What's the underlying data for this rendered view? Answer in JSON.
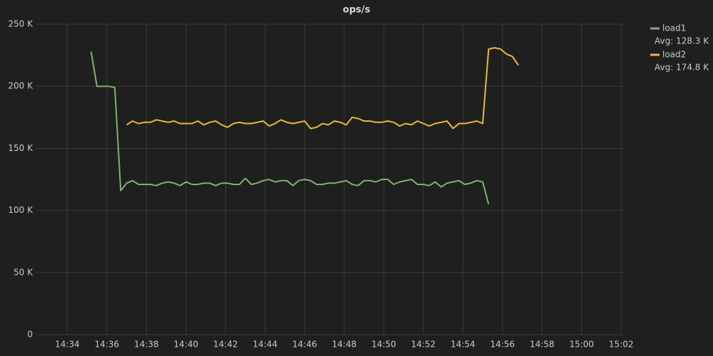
{
  "chart_data": {
    "type": "line",
    "title": "ops/s",
    "x": [
      875.2,
      875.5,
      875.8,
      876.1,
      876.4,
      876.7,
      877.0,
      877.3,
      877.6,
      877.9,
      878.2,
      878.5,
      878.8,
      879.1,
      879.4,
      879.7,
      880.0,
      880.3,
      880.6,
      880.9,
      881.2,
      881.5,
      881.8,
      882.1,
      882.4,
      882.7,
      883.0,
      883.3,
      883.6,
      883.9,
      884.2,
      884.5,
      884.8,
      885.1,
      885.4,
      885.7,
      886.0,
      886.3,
      886.6,
      886.9,
      887.2,
      887.5,
      887.8,
      888.1,
      888.4,
      888.7,
      889.0,
      889.3,
      889.6,
      889.9,
      890.2,
      890.5,
      890.8,
      891.1,
      891.4,
      891.7,
      892.0,
      892.3,
      892.6,
      892.9,
      893.2,
      893.5,
      893.8,
      894.1,
      894.4,
      894.7,
      895.0,
      895.3,
      895.6,
      895.9,
      896.2,
      896.5,
      896.8
    ],
    "series": [
      {
        "name": "load1",
        "legend_value": "Avg: 128.3 K",
        "color": "#7eb26d",
        "values": [
          228000,
          200000,
          200000,
          200000,
          199000,
          116000,
          122000,
          124000,
          121000,
          121000,
          121000,
          120000,
          122000,
          123000,
          122000,
          120000,
          123000,
          121000,
          121000,
          122000,
          122000,
          120000,
          122000,
          122000,
          121000,
          121000,
          126000,
          121000,
          122000,
          124000,
          125000,
          123000,
          124000,
          124000,
          120000,
          124000,
          125000,
          124000,
          121000,
          121000,
          122000,
          122000,
          123000,
          124000,
          121000,
          120000,
          124000,
          124000,
          123000,
          125000,
          125000,
          121000,
          123000,
          124000,
          125000,
          121000,
          121000,
          120000,
          123000,
          119000,
          122000,
          123000,
          124000,
          121000,
          122000,
          124000,
          123000,
          105000,
          null,
          null,
          null,
          null,
          null
        ]
      },
      {
        "name": "load2",
        "legend_value": "Avg: 174.8 K",
        "color": "#eab839",
        "values": [
          null,
          null,
          null,
          null,
          null,
          null,
          169000,
          172000,
          170000,
          171000,
          171000,
          173000,
          172000,
          171000,
          172000,
          170000,
          170000,
          170000,
          172000,
          169000,
          171000,
          172000,
          169000,
          167000,
          170000,
          171000,
          170000,
          170000,
          171000,
          172000,
          168000,
          170000,
          173000,
          171000,
          170000,
          171000,
          172000,
          166000,
          167000,
          170000,
          169000,
          172000,
          171000,
          169000,
          175000,
          174000,
          172000,
          172000,
          171000,
          171000,
          172000,
          171000,
          168000,
          170000,
          169000,
          172000,
          170000,
          168000,
          170000,
          171000,
          172000,
          166000,
          170000,
          170000,
          171000,
          172000,
          170000,
          230000,
          231000,
          230000,
          226000,
          224000,
          217000
        ]
      }
    ],
    "xlim": [
      872.4,
      902.1
    ],
    "xticks": [
      {
        "value": 874,
        "label": "14:34"
      },
      {
        "value": 876,
        "label": "14:36"
      },
      {
        "value": 878,
        "label": "14:38"
      },
      {
        "value": 880,
        "label": "14:40"
      },
      {
        "value": 882,
        "label": "14:42"
      },
      {
        "value": 884,
        "label": "14:44"
      },
      {
        "value": 886,
        "label": "14:46"
      },
      {
        "value": 888,
        "label": "14:48"
      },
      {
        "value": 890,
        "label": "14:50"
      },
      {
        "value": 892,
        "label": "14:52"
      },
      {
        "value": 894,
        "label": "14:54"
      },
      {
        "value": 896,
        "label": "14:56"
      },
      {
        "value": 898,
        "label": "14:58"
      },
      {
        "value": 900,
        "label": "15:00"
      },
      {
        "value": 902,
        "label": "15:02"
      }
    ],
    "ylim": [
      0,
      250000
    ],
    "yticks": [
      0,
      {
        "value": 50000,
        "label": "50 K"
      },
      {
        "value": 100000,
        "label": "100 K"
      },
      {
        "value": 150000,
        "label": "150 K"
      },
      {
        "value": 200000,
        "label": "200 K"
      },
      {
        "value": 250000,
        "label": "250 K"
      }
    ],
    "grid": true,
    "legend": "right"
  }
}
